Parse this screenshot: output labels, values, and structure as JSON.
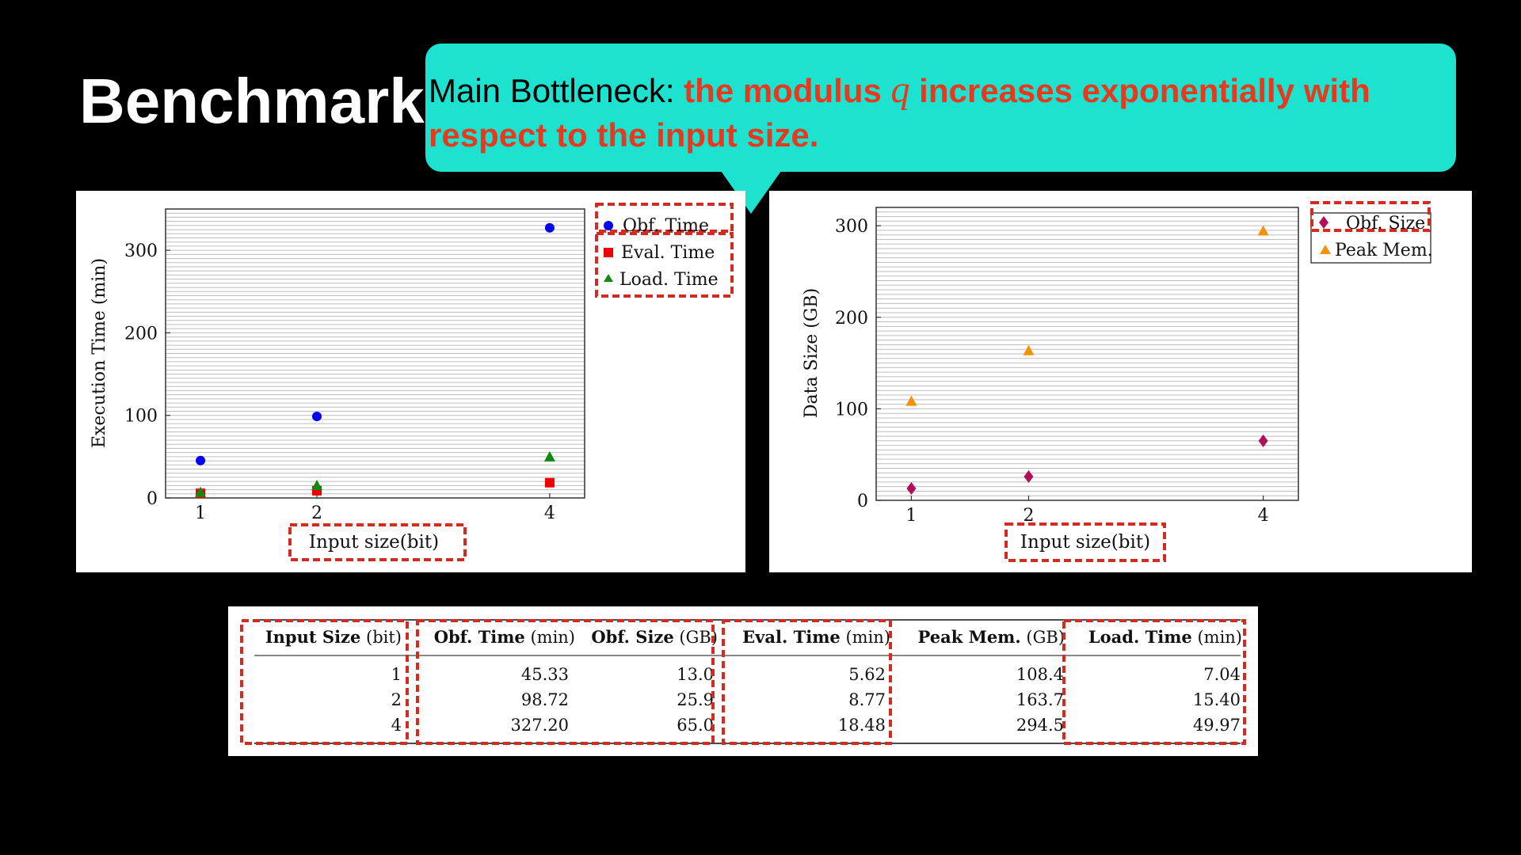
{
  "slide": {
    "title": "Benchmark",
    "callout": {
      "prefix": "Main Bottleneck: ",
      "highlight_1": "the modulus ",
      "variable": "q",
      "highlight_2": " increases exponentially with respect to the input size."
    },
    "colors": {
      "background": "#000000",
      "callout": "#1de2cf",
      "highlight": "#e53a1f",
      "annotation_box": "#d42a1f"
    }
  },
  "chart_data": [
    {
      "type": "scatter",
      "ylabel": "Execution Time (min)",
      "xlabel": "Input size(bit)",
      "x_ticks": [
        1,
        2,
        4
      ],
      "y_ticks": [
        0,
        100,
        200,
        300
      ],
      "xlim": [
        0.7,
        4.3
      ],
      "ylim": [
        0,
        350
      ],
      "grid": true,
      "legend_position": "outside-top-right",
      "series": [
        {
          "name": "Obf. Time",
          "marker": "circle",
          "color": "#0000ee",
          "x": [
            1,
            2,
            4
          ],
          "y": [
            45.33,
            98.72,
            327.2
          ]
        },
        {
          "name": "Eval. Time",
          "marker": "square",
          "color": "#ee0000",
          "x": [
            1,
            2,
            4
          ],
          "y": [
            5.62,
            8.77,
            18.48
          ]
        },
        {
          "name": "Load. Time",
          "marker": "triangle",
          "color": "#118811",
          "x": [
            1,
            2,
            4
          ],
          "y": [
            7.04,
            15.4,
            49.97
          ]
        }
      ]
    },
    {
      "type": "scatter",
      "ylabel": "Data Size (GB)",
      "xlabel": "Input size(bit)",
      "x_ticks": [
        1,
        2,
        4
      ],
      "y_ticks": [
        0,
        100,
        200,
        300
      ],
      "xlim": [
        0.7,
        4.3
      ],
      "ylim": [
        0,
        320
      ],
      "grid": true,
      "legend_position": "outside-top-right",
      "series": [
        {
          "name": "Obf. Size",
          "marker": "diamond",
          "color": "#b0105a",
          "x": [
            1,
            2,
            4
          ],
          "y": [
            13.0,
            25.9,
            65.0
          ]
        },
        {
          "name": "Peak Mem.",
          "marker": "triangle",
          "color": "#f5900a",
          "x": [
            1,
            2,
            4
          ],
          "y": [
            108.4,
            163.7,
            294.5
          ]
        }
      ]
    }
  ],
  "table": {
    "columns": [
      {
        "name": "Input Size",
        "unit": "(bit)"
      },
      {
        "name": "Obf. Time",
        "unit": "(min)"
      },
      {
        "name": "Obf. Size",
        "unit": "(GB)"
      },
      {
        "name": "Eval. Time",
        "unit": "(min)"
      },
      {
        "name": "Peak Mem.",
        "unit": "(GB)"
      },
      {
        "name": "Load. Time",
        "unit": "(min)"
      }
    ],
    "rows": [
      [
        "1",
        "45.33",
        "13.0",
        "5.62",
        "108.4",
        "7.04"
      ],
      [
        "2",
        "98.72",
        "25.9",
        "8.77",
        "163.7",
        "15.40"
      ],
      [
        "4",
        "327.20",
        "65.0",
        "18.48",
        "294.5",
        "49.97"
      ]
    ]
  }
}
